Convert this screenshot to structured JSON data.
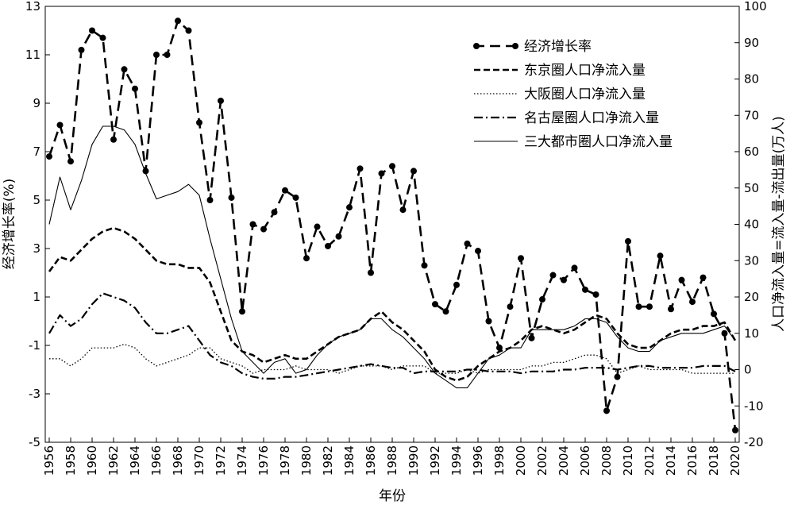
{
  "chart_data": {
    "type": "line",
    "xlabel": "年份",
    "ylabel_left": "经济增长率(%)",
    "ylabel_right": "人口净流入量=流入量-流出量(万人)",
    "x": [
      1956,
      1957,
      1958,
      1959,
      1960,
      1961,
      1962,
      1963,
      1964,
      1965,
      1966,
      1967,
      1968,
      1969,
      1970,
      1971,
      1972,
      1973,
      1974,
      1975,
      1976,
      1977,
      1978,
      1979,
      1980,
      1981,
      1982,
      1983,
      1984,
      1985,
      1986,
      1987,
      1988,
      1989,
      1990,
      1991,
      1992,
      1993,
      1994,
      1995,
      1996,
      1997,
      1998,
      1999,
      2000,
      2001,
      2002,
      2003,
      2004,
      2005,
      2006,
      2007,
      2008,
      2009,
      2010,
      2011,
      2012,
      2013,
      2014,
      2015,
      2016,
      2017,
      2018,
      2019,
      2020
    ],
    "xticks": [
      "1956",
      "1958",
      "1960",
      "1962",
      "1964",
      "1966",
      "1968",
      "1970",
      "1972",
      "1974",
      "1976",
      "1978",
      "1980",
      "1982",
      "1984",
      "1986",
      "1988",
      "1990",
      "1992",
      "1994",
      "1996",
      "1998",
      "2000",
      "2002",
      "2004",
      "2006",
      "2008",
      "2010",
      "2012",
      "2014",
      "2016",
      "2018",
      "2020"
    ],
    "ylim_left": [
      -5,
      13
    ],
    "yticks_left": [
      -5,
      -3,
      -1,
      1,
      3,
      5,
      7,
      9,
      11,
      13
    ],
    "ylim_right": [
      -20,
      100
    ],
    "yticks_right": [
      -20,
      -10,
      0,
      10,
      20,
      30,
      40,
      50,
      60,
      70,
      80,
      90,
      100
    ],
    "legend_position": "top-right",
    "grid": false,
    "series": [
      {
        "name": "经济增长率",
        "axis": "left",
        "style": "dash-marker",
        "values": [
          6.8,
          8.1,
          6.6,
          11.2,
          12.0,
          11.7,
          7.5,
          10.4,
          9.6,
          6.2,
          11.0,
          11.0,
          12.4,
          12.0,
          8.2,
          5.0,
          9.1,
          5.1,
          0.4,
          4.0,
          3.8,
          4.5,
          5.4,
          5.1,
          2.6,
          3.9,
          3.1,
          3.5,
          4.7,
          6.3,
          2.0,
          6.1,
          6.4,
          4.6,
          6.2,
          2.3,
          0.7,
          0.4,
          1.5,
          3.2,
          2.9,
          0.0,
          -1.1,
          0.6,
          2.6,
          -0.7,
          0.9,
          1.9,
          1.7,
          2.2,
          1.3,
          1.1,
          -3.7,
          -2.3,
          3.3,
          0.6,
          0.6,
          2.7,
          0.5,
          1.7,
          0.8,
          1.8,
          0.3,
          -0.5,
          -4.5
        ]
      },
      {
        "name": "东京圈人口净流入量",
        "axis": "right",
        "style": "dashed",
        "values": [
          27,
          31,
          30,
          33,
          36,
          38,
          39,
          38,
          36,
          33,
          30,
          29,
          29,
          28,
          28,
          24,
          16,
          8,
          5,
          4,
          2,
          3,
          4,
          3,
          3,
          5,
          7,
          9,
          10,
          11,
          14,
          16,
          13,
          11,
          8,
          5,
          0,
          -2,
          -3,
          -2,
          1,
          3,
          5,
          6,
          8,
          11,
          12,
          11,
          10,
          11,
          13,
          15,
          14,
          10,
          7,
          6,
          6,
          8,
          10,
          11,
          11,
          12,
          12,
          13,
          8
        ]
      },
      {
        "name": "大阪圈人口净流入量",
        "axis": "right",
        "style": "dotted",
        "values": [
          3,
          3,
          1,
          3,
          6,
          6,
          6,
          7,
          6,
          3,
          1,
          2,
          3,
          4,
          6,
          6,
          3,
          2,
          1,
          -1,
          0,
          0,
          0,
          1,
          0,
          0,
          0,
          -1,
          0,
          1,
          1,
          1,
          0,
          1,
          1,
          1,
          -1,
          -1,
          -1,
          0,
          -1,
          0,
          0,
          0,
          0,
          1,
          1,
          2,
          2,
          3,
          4,
          4,
          3,
          -1,
          0,
          1,
          0,
          0,
          0,
          0,
          -1,
          -1,
          -1,
          -1,
          -1
        ]
      },
      {
        "name": "名古屋圈人口净流入量",
        "axis": "right",
        "style": "dash-dot",
        "values": [
          10,
          15,
          12,
          14,
          18,
          21,
          20,
          19,
          17,
          13,
          10,
          10,
          11,
          12,
          8,
          4,
          2,
          1,
          -1,
          -2,
          -2.5,
          -2.5,
          -2,
          -2,
          -1.5,
          -1,
          -0.5,
          0,
          0.5,
          1,
          1.5,
          1,
          0.5,
          0.5,
          -1,
          -0.5,
          -0.5,
          -0.5,
          -0.5,
          0,
          0,
          -0.5,
          -0.5,
          -0.5,
          -1,
          -0.5,
          -0.5,
          -0.5,
          0,
          0,
          0.5,
          0.5,
          0.5,
          0,
          0.5,
          1,
          1,
          0.5,
          0.5,
          0.5,
          0.5,
          1,
          1,
          1,
          -0.5
        ]
      },
      {
        "name": "三大都市圈人口净流入量",
        "axis": "right",
        "style": "solid",
        "values": [
          40,
          53,
          44,
          52,
          62,
          67,
          67,
          66,
          62,
          54,
          47,
          48,
          49,
          51,
          48,
          36,
          25,
          14,
          5,
          2,
          -1,
          2,
          3,
          -1,
          0,
          4,
          7,
          9,
          10,
          11,
          14,
          14,
          11,
          9,
          6,
          3,
          -1,
          -3,
          -5,
          -5,
          -1,
          3,
          4,
          6,
          6,
          11,
          11,
          11,
          11,
          12,
          14,
          14,
          13,
          9,
          6,
          5,
          5,
          8,
          9,
          10,
          10,
          10,
          11,
          12,
          8
        ]
      }
    ]
  }
}
